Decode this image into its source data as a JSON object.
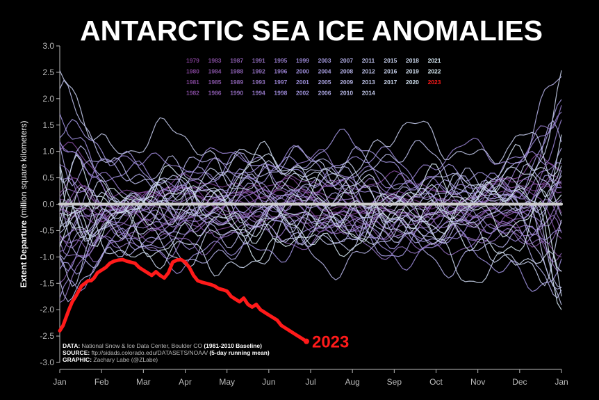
{
  "chart_data": {
    "type": "line",
    "title": "ANTARCTIC SEA ICE ANOMALIES",
    "ylabel_bold": "Extent Departure",
    "ylabel_rest": " (million square kilometers)",
    "ylim": [
      -3.0,
      3.0
    ],
    "yticks": [
      "3.0",
      "2.5",
      "2.0",
      "1.5",
      "1.0",
      "0.5",
      "0.0",
      "-0.5",
      "-1.0",
      "-1.5",
      "-2.0",
      "-2.5",
      "-3.0"
    ],
    "xticks": [
      "Jan",
      "Feb",
      "Mar",
      "Apr",
      "May",
      "Jun",
      "Jul",
      "Aug",
      "Sep",
      "Oct",
      "Nov",
      "Dec",
      "Jan"
    ],
    "grid": false,
    "legend_placement": "top-center",
    "legend_columns": [
      [
        "1979",
        "1980",
        "1981",
        "1982"
      ],
      [
        "1983",
        "1984",
        "1985",
        "1986"
      ],
      [
        "1987",
        "1988",
        "1989",
        "1990"
      ],
      [
        "1991",
        "1992",
        "1993",
        "1994"
      ],
      [
        "1995",
        "1996",
        "1997",
        "1998"
      ],
      [
        "1999",
        "2000",
        "2001",
        "2002"
      ],
      [
        "2003",
        "2004",
        "2005",
        "2006"
      ],
      [
        "2007",
        "2008",
        "2009",
        "2010"
      ],
      [
        "2011",
        "2012",
        "2013",
        "2014"
      ],
      [
        "2015",
        "2016",
        "2017",
        ""
      ],
      [
        "2018",
        "2019",
        "2020",
        ""
      ],
      [
        "2021",
        "2022",
        "2023",
        ""
      ]
    ],
    "highlight": {
      "name": "2023",
      "color": "#ff1a1a",
      "x_month": [
        0.0,
        0.08,
        0.15,
        0.22,
        0.3,
        0.38,
        0.45,
        0.52,
        0.6,
        0.68,
        0.75,
        0.82,
        0.9,
        1.0,
        1.1,
        1.2,
        1.3,
        1.4,
        1.5,
        1.6,
        1.7,
        1.8,
        1.9,
        2.0,
        2.1,
        2.2,
        2.3,
        2.4,
        2.5,
        2.6,
        2.7,
        2.8,
        2.9,
        3.0,
        3.1,
        3.2,
        3.3,
        3.4,
        3.5,
        3.6,
        3.7,
        3.8,
        3.9,
        4.0,
        4.1,
        4.2,
        4.3,
        4.4,
        4.5,
        4.6,
        4.7,
        4.8,
        4.9,
        5.0,
        5.1,
        5.2,
        5.3,
        5.4,
        5.5,
        5.6,
        5.7,
        5.8,
        5.9
      ],
      "y": [
        -2.4,
        -2.3,
        -2.15,
        -2.0,
        -1.85,
        -1.75,
        -1.65,
        -1.55,
        -1.5,
        -1.45,
        -1.45,
        -1.4,
        -1.3,
        -1.25,
        -1.2,
        -1.12,
        -1.08,
        -1.06,
        -1.05,
        -1.08,
        -1.1,
        -1.12,
        -1.2,
        -1.25,
        -1.3,
        -1.35,
        -1.28,
        -1.35,
        -1.4,
        -1.3,
        -1.1,
        -1.06,
        -1.05,
        -1.1,
        -1.2,
        -1.35,
        -1.45,
        -1.48,
        -1.5,
        -1.52,
        -1.55,
        -1.6,
        -1.62,
        -1.65,
        -1.75,
        -1.8,
        -1.85,
        -1.78,
        -1.9,
        -1.95,
        -1.9,
        -2.0,
        -2.05,
        -2.1,
        -2.15,
        -2.2,
        -2.3,
        -2.35,
        -2.4,
        -2.45,
        -2.5,
        -2.55,
        -2.6
      ]
    },
    "highlight_label": "2023",
    "baseline_color": "#cccccc",
    "source_lines": [
      {
        "bold": "DATA:",
        "text": " National Snow & Ice Data Center, Boulder CO ",
        "bold2": "(1981-2010 Baseline)"
      },
      {
        "bold": "SOURCE:",
        "text": " ftp://sidads.colorado.edu/DATASETS/NOAA/ ",
        "bold2": "(5-day running mean)"
      },
      {
        "bold": "GRAPHIC:",
        "text": " Zachary Labe (@ZLabe)",
        "bold2": ""
      }
    ],
    "colors": {
      "early": "#7a3c8c",
      "mid": "#9a8cd8",
      "late": "#d6e8f0",
      "legend_2023": "#ff1a1a"
    }
  }
}
